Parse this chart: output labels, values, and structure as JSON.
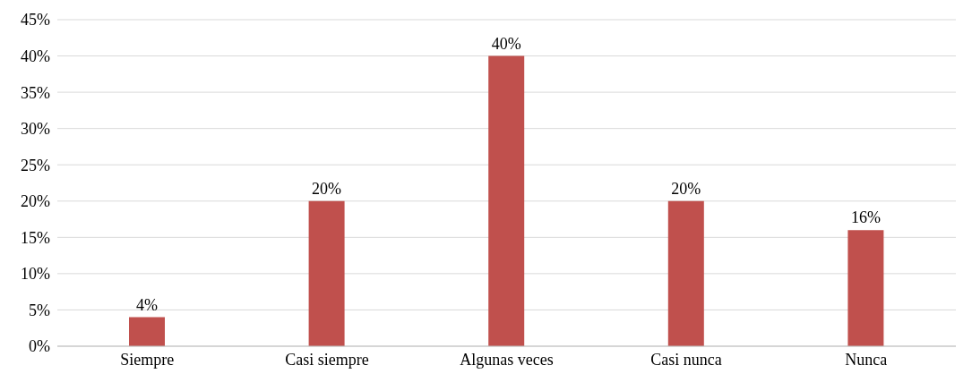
{
  "chart_data": {
    "type": "bar",
    "categories": [
      "Siempre",
      "Casi siempre",
      "Algunas veces",
      "Casi nunca",
      "Nunca"
    ],
    "values": [
      4,
      20,
      40,
      20,
      16
    ],
    "color": "#c0504d",
    "value_labels": [
      "4%",
      "20%",
      "40%",
      "20%",
      "16%"
    ],
    "ylim": [
      0,
      45
    ],
    "yticks": [
      {
        "value": 0,
        "label": "0%"
      },
      {
        "value": 5,
        "label": "5%"
      },
      {
        "value": 10,
        "label": "10%"
      },
      {
        "value": 15,
        "label": "15%"
      },
      {
        "value": 20,
        "label": "20%"
      },
      {
        "value": 25,
        "label": "25%"
      },
      {
        "value": 30,
        "label": "30%"
      },
      {
        "value": 35,
        "label": "35%"
      },
      {
        "value": 40,
        "label": "40%"
      },
      {
        "value": 45,
        "label": "45%"
      }
    ],
    "grid": "y"
  }
}
